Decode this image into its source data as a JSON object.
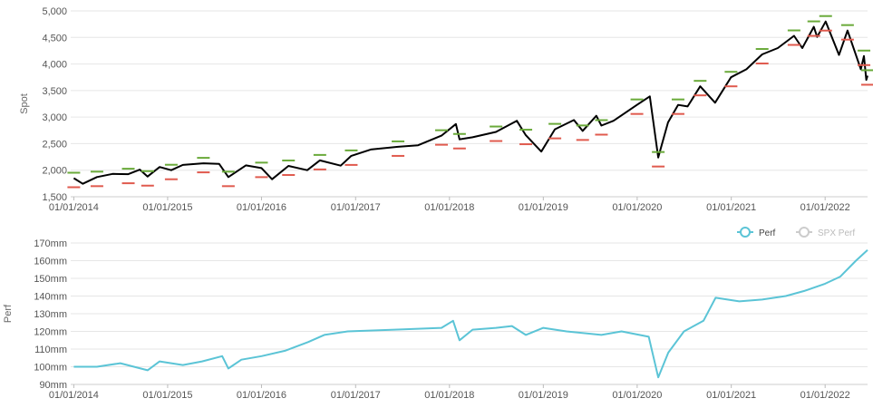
{
  "chart_data": [
    {
      "type": "line",
      "ylabel": "Spot",
      "xlabel": "",
      "x_range": [
        "2013-12-20",
        "2022-06-15"
      ],
      "ylim": [
        1500,
        5000
      ],
      "yticks": [
        1500,
        2000,
        2500,
        3000,
        3500,
        4000,
        4500,
        5000
      ],
      "ytick_labels": [
        "1,500",
        "2,000",
        "2,500",
        "3,000",
        "3,500",
        "4,000",
        "4,500",
        "5,000"
      ],
      "xticks": [
        "2014-01-01",
        "2015-01-01",
        "2016-01-01",
        "2017-01-01",
        "2018-01-01",
        "2019-01-01",
        "2020-01-01",
        "2021-01-01",
        "2022-01-01"
      ],
      "xtick_labels": [
        "01/01/2014",
        "01/01/2015",
        "01/01/2016",
        "01/01/2017",
        "01/01/2018",
        "01/01/2019",
        "01/01/2020",
        "01/01/2021",
        "01/01/2022"
      ],
      "grid": "horizontal",
      "colors": {
        "spot": "#000000",
        "upper": "#6aaa3a",
        "lower": "#e05a4e"
      },
      "series": [
        {
          "values": [
            [
              "2014-01-01",
              1850
            ],
            [
              "2014-02-05",
              1745
            ],
            [
              "2014-04-01",
              1870
            ],
            [
              "2014-06-01",
              1930
            ],
            [
              "2014-08-01",
              1925
            ],
            [
              "2014-09-15",
              2010
            ],
            [
              "2014-10-15",
              1880
            ],
            [
              "2014-12-01",
              2060
            ],
            [
              "2015-01-15",
              2000
            ],
            [
              "2015-03-01",
              2100
            ],
            [
              "2015-05-20",
              2130
            ],
            [
              "2015-07-20",
              2120
            ],
            [
              "2015-08-25",
              1870
            ],
            [
              "2015-11-01",
              2090
            ],
            [
              "2016-01-01",
              2040
            ],
            [
              "2016-02-11",
              1830
            ],
            [
              "2016-04-15",
              2080
            ],
            [
              "2016-06-27",
              2000
            ],
            [
              "2016-08-15",
              2185
            ],
            [
              "2016-11-04",
              2085
            ],
            [
              "2016-12-15",
              2270
            ],
            [
              "2017-03-01",
              2390
            ],
            [
              "2017-06-15",
              2440
            ],
            [
              "2017-09-01",
              2470
            ],
            [
              "2017-12-01",
              2650
            ],
            [
              "2018-01-26",
              2870
            ],
            [
              "2018-02-09",
              2580
            ],
            [
              "2018-04-01",
              2620
            ],
            [
              "2018-07-01",
              2720
            ],
            [
              "2018-09-20",
              2930
            ],
            [
              "2018-10-25",
              2660
            ],
            [
              "2018-12-24",
              2350
            ],
            [
              "2019-02-15",
              2770
            ],
            [
              "2019-04-30",
              2945
            ],
            [
              "2019-06-03",
              2740
            ],
            [
              "2019-07-26",
              3025
            ],
            [
              "2019-08-15",
              2840
            ],
            [
              "2019-10-01",
              2930
            ],
            [
              "2019-12-31",
              3230
            ],
            [
              "2020-02-19",
              3390
            ],
            [
              "2020-03-23",
              2240
            ],
            [
              "2020-04-30",
              2900
            ],
            [
              "2020-06-08",
              3230
            ],
            [
              "2020-07-15",
              3200
            ],
            [
              "2020-09-02",
              3580
            ],
            [
              "2020-10-30",
              3270
            ],
            [
              "2020-12-31",
              3750
            ],
            [
              "2021-03-01",
              3900
            ],
            [
              "2021-05-01",
              4180
            ],
            [
              "2021-07-01",
              4300
            ],
            [
              "2021-09-02",
              4530
            ],
            [
              "2021-10-04",
              4300
            ],
            [
              "2021-11-18",
              4700
            ],
            [
              "2021-12-01",
              4510
            ],
            [
              "2022-01-03",
              4800
            ],
            [
              "2022-02-24",
              4170
            ],
            [
              "2022-03-29",
              4630
            ],
            [
              "2022-05-20",
              3900
            ],
            [
              "2022-06-01",
              4150
            ],
            [
              "2022-06-10",
              3700
            ],
            [
              "2022-06-15",
              3780
            ]
          ]
        }
      ]
    },
    {
      "type": "line",
      "ylabel": "Perf",
      "xlabel": "",
      "x_range": [
        "2013-12-20",
        "2022-06-15"
      ],
      "ylim": [
        90,
        170
      ],
      "yticks": [
        90,
        100,
        110,
        120,
        130,
        140,
        150,
        160,
        170
      ],
      "ytick_labels": [
        "90mm",
        "100mm",
        "110mm",
        "120mm",
        "130mm",
        "140mm",
        "150mm",
        "160mm",
        "170mm"
      ],
      "xticks": [
        "2014-01-01",
        "2015-01-01",
        "2016-01-01",
        "2017-01-01",
        "2018-01-01",
        "2019-01-01",
        "2020-01-01",
        "2021-01-01",
        "2022-01-01"
      ],
      "xtick_labels": [
        "01/01/2014",
        "01/01/2015",
        "01/01/2016",
        "01/01/2017",
        "01/01/2018",
        "01/01/2019",
        "01/01/2020",
        "01/01/2021",
        "01/01/2022"
      ],
      "grid": "horizontal",
      "legend": {
        "position": "top-right",
        "entries": [
          {
            "label": "Perf",
            "color": "#5bc4d6"
          },
          {
            "label": "SPX Perf",
            "color": "#cccccc"
          }
        ]
      },
      "series": [
        {
          "name": "Perf",
          "color": "#5bc4d6",
          "values": [
            [
              "2014-01-01",
              100
            ],
            [
              "2014-04-01",
              100
            ],
            [
              "2014-07-01",
              102
            ],
            [
              "2014-10-15",
              98
            ],
            [
              "2014-12-01",
              103
            ],
            [
              "2015-03-01",
              101
            ],
            [
              "2015-05-15",
              103
            ],
            [
              "2015-08-01",
              106
            ],
            [
              "2015-08-25",
              99
            ],
            [
              "2015-10-15",
              104
            ],
            [
              "2016-01-01",
              106
            ],
            [
              "2016-04-01",
              109
            ],
            [
              "2016-07-01",
              114
            ],
            [
              "2016-09-01",
              118
            ],
            [
              "2016-12-01",
              120
            ],
            [
              "2017-06-01",
              121
            ],
            [
              "2017-12-01",
              122
            ],
            [
              "2018-01-15",
              126
            ],
            [
              "2018-02-09",
              115
            ],
            [
              "2018-04-01",
              121
            ],
            [
              "2018-07-01",
              122
            ],
            [
              "2018-09-01",
              123
            ],
            [
              "2018-10-25",
              118
            ],
            [
              "2019-01-01",
              122
            ],
            [
              "2019-04-01",
              120
            ],
            [
              "2019-08-15",
              118
            ],
            [
              "2019-11-01",
              120
            ],
            [
              "2020-02-15",
              117
            ],
            [
              "2020-03-23",
              94
            ],
            [
              "2020-05-01",
              108
            ],
            [
              "2020-07-01",
              120
            ],
            [
              "2020-09-15",
              126
            ],
            [
              "2020-11-01",
              139
            ],
            [
              "2021-02-01",
              137
            ],
            [
              "2021-05-01",
              138
            ],
            [
              "2021-08-01",
              140
            ],
            [
              "2021-10-15",
              143
            ],
            [
              "2022-01-01",
              147
            ],
            [
              "2022-03-01",
              151
            ],
            [
              "2022-05-01",
              160
            ],
            [
              "2022-06-15",
              166
            ]
          ]
        }
      ]
    }
  ]
}
